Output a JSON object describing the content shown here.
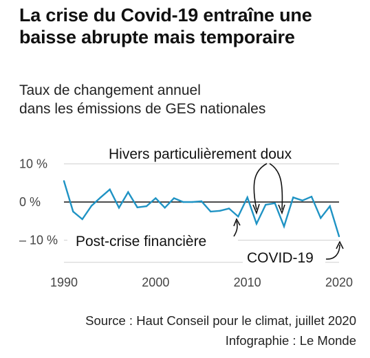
{
  "title": "La crise du Covid-19 entraîne une baisse abrupte mais temporaire",
  "subtitle_line1": "Taux de changement annuel",
  "subtitle_line2": "dans les émissions de GES nationales",
  "source": "Source : Haut Conseil pour le climat, juillet 2020",
  "credit": "Infographie : Le Monde",
  "colors": {
    "line": "#1f93c4",
    "zero_line": "#111111",
    "grid": "#d0d0d0",
    "arrow": "#111111"
  },
  "chart_data": {
    "type": "line",
    "title": "La crise du Covid-19 entraîne une baisse abrupte mais temporaire",
    "subtitle": "Taux de changement annuel dans les émissions de GES nationales",
    "xlabel": "",
    "ylabel": "",
    "xlim": [
      1990,
      2020
    ],
    "ylim": [
      -15,
      12
    ],
    "x_ticks": [
      1990,
      2000,
      2010,
      2020
    ],
    "x_tick_labels": [
      "1990",
      "2000",
      "2010",
      "2020"
    ],
    "y_ticks": [
      10,
      0,
      -10
    ],
    "y_tick_labels": [
      "10 %",
      "0 %",
      "– 10 %"
    ],
    "grid": true,
    "series": [
      {
        "x": [
          1990,
          1991,
          1992,
          1993,
          1994,
          1995,
          1996,
          1997,
          1998,
          1999,
          2000,
          2001,
          2002,
          2003,
          2004,
          2005,
          2006,
          2007,
          2008,
          2009,
          2010,
          2011,
          2012,
          2013,
          2014,
          2015,
          2016,
          2017,
          2018,
          2019,
          2020
        ],
        "y": [
          5.5,
          -2.5,
          -4.5,
          -1.0,
          1.2,
          3.3,
          -1.5,
          2.6,
          -1.4,
          -1.1,
          1.0,
          -1.5,
          1.0,
          0.0,
          0.0,
          0.2,
          -2.5,
          -2.3,
          -1.7,
          -3.8,
          1.2,
          -5.7,
          -0.7,
          -0.3,
          -6.4,
          1.2,
          0.4,
          1.4,
          -4.2,
          -1.1,
          -9.0
        ]
      }
    ],
    "annotations": [
      {
        "text": "Hivers particulièrement doux",
        "points": [
          2011,
          2014
        ]
      },
      {
        "text": "Post-crise financière",
        "point": 2009
      },
      {
        "text": "COVID-19",
        "point": 2020
      }
    ]
  }
}
